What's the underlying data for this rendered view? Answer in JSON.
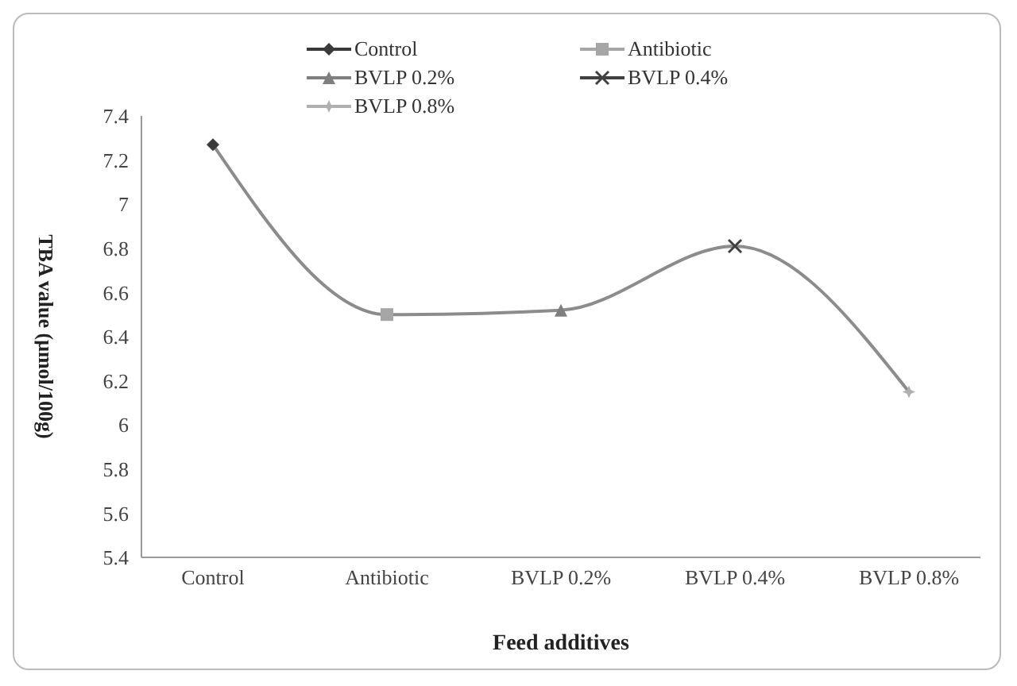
{
  "chart_data": {
    "type": "line",
    "xlabel": "Feed additives",
    "ylabel": "TBA value (μmol/100g)",
    "categories": [
      "Control",
      "Antibiotic",
      "BVLP 0.2%",
      "BVLP 0.4%",
      "BVLP 0.8%"
    ],
    "ylim": [
      5.4,
      7.4
    ],
    "yticks": [
      5.4,
      5.6,
      5.8,
      6,
      6.2,
      6.4,
      6.6,
      6.8,
      7,
      7.2,
      7.4
    ],
    "grid": false,
    "legend": "top",
    "series": [
      {
        "color": "#8c8c8c",
        "marker": "none",
        "values": [
          7.27,
          6.5,
          6.52,
          6.81,
          6.15
        ]
      },
      {
        "type": "scatter",
        "name": "Control",
        "color": "#3a3a3a",
        "marker": "diamond",
        "values": [
          7.27,
          null,
          null,
          null,
          null
        ]
      },
      {
        "type": "scatter",
        "name": "Antibiotic",
        "color": "#a6a6a6",
        "marker": "square",
        "values": [
          null,
          6.5,
          null,
          null,
          null
        ]
      },
      {
        "type": "scatter",
        "name": "BVLP 0.2%",
        "color": "#7f7f7f",
        "marker": "triangle",
        "values": [
          null,
          null,
          6.52,
          null,
          null
        ]
      },
      {
        "type": "scatter",
        "name": "BVLP 0.4%",
        "color": "#404040",
        "marker": "cross",
        "values": [
          null,
          null,
          null,
          6.81,
          null
        ]
      },
      {
        "type": "scatter",
        "name": "BVLP 0.8%",
        "color": "#b0b0b0",
        "marker": "star",
        "values": [
          null,
          null,
          null,
          null,
          6.15
        ]
      }
    ]
  }
}
